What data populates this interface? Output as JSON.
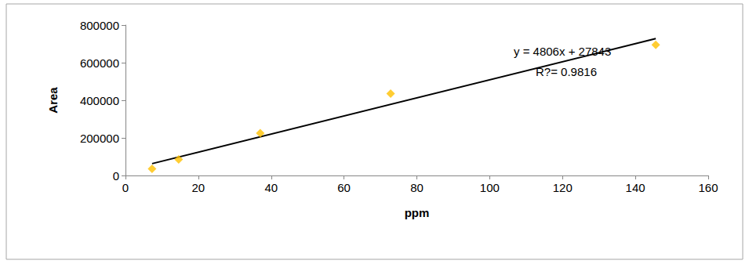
{
  "chart_data": {
    "type": "scatter",
    "x_label": "ppm",
    "y_label": "Area",
    "annotations": [
      "y = 4806x + 27843",
      "R?= 0.9816"
    ],
    "series": [
      {
        "type": "scatter",
        "color": "#ffc000",
        "marker": "diamond",
        "x": [
          7.3,
          14.6,
          37,
          72.8,
          145.6
        ],
        "values": [
          35000,
          85000,
          225000,
          435000,
          695000
        ]
      },
      {
        "type": "line",
        "color": "#000000",
        "marker": "none",
        "x": [
          7.3,
          145.6
        ],
        "values": [
          63000,
          728000
        ]
      }
    ],
    "xlim": [
      0,
      160
    ],
    "xticks": [
      0,
      20,
      40,
      60,
      80,
      100,
      120,
      140,
      160
    ],
    "ylim": [
      0,
      800000
    ],
    "yticks": [
      0,
      200000,
      400000,
      600000,
      800000
    ],
    "grid": false
  }
}
